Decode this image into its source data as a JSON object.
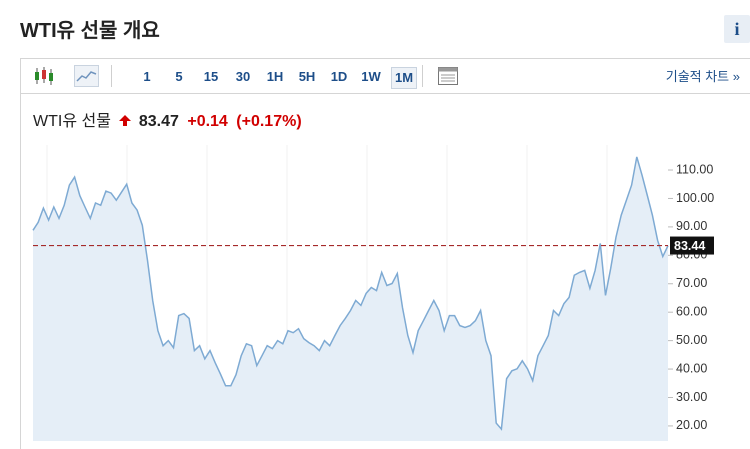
{
  "header": {
    "title": "WTI유 선물 개요",
    "info": "i"
  },
  "toolbar": {
    "intervals": [
      "1",
      "5",
      "15",
      "30",
      "1H",
      "5H",
      "1D",
      "1W",
      "1M"
    ],
    "selected_index": 8,
    "technical_chart": "기술적 차트 »"
  },
  "quote": {
    "name": "WTI유 선물",
    "price": "83.47",
    "change": "+0.14",
    "change_pct": "(+0.17%)"
  },
  "chart_data": {
    "type": "line",
    "color": "#7eaad3",
    "fill": "#e5eef7",
    "values": [
      88.8,
      91.6,
      96.6,
      92.4,
      97,
      93,
      97.6,
      104.7,
      107.5,
      101,
      97,
      93,
      98.4,
      97.6,
      102.6,
      101.9,
      99.4,
      102.2,
      105,
      98.4,
      95.9,
      90.6,
      78.2,
      64.1,
      53.5,
      48.2,
      50,
      47.5,
      58.8,
      59.5,
      57.8,
      46.5,
      48.2,
      43.6,
      46.5,
      42.2,
      38.3,
      34.1,
      34.1,
      38,
      44.7,
      48.9,
      48.2,
      41.2,
      44.7,
      48.2,
      47.2,
      50,
      48.9,
      53.5,
      52.8,
      54.2,
      50.7,
      49.3,
      48.2,
      46.5,
      50,
      48.2,
      51.8,
      55.3,
      57.8,
      60.6,
      64.1,
      62.4,
      66.6,
      68.7,
      67.6,
      74,
      69.4,
      70.1,
      73.6,
      61.6,
      51.8,
      45.8,
      53.5,
      57,
      60.6,
      64.1,
      60.6,
      53.5,
      58.8,
      58.8,
      55.3,
      54.6,
      55.3,
      57,
      60.6,
      50,
      44.7,
      21,
      18.9,
      36.6,
      39.4,
      40.1,
      42.9,
      40.1,
      35.9,
      44.7,
      48.2,
      51.8,
      60.6,
      58.8,
      63,
      65.2,
      73,
      74,
      74.7,
      68.4,
      74.7,
      84.2,
      65.9,
      75.4,
      86.4,
      94.1,
      99.4,
      104.7,
      114.6,
      108.2,
      101.2,
      94.1,
      85.3,
      79.6,
      83.4
    ],
    "ylim": [
      14.7,
      118.8
    ],
    "yticks": [
      {
        "value": 20,
        "label": "20.00"
      },
      {
        "value": 30,
        "label": "30.00"
      },
      {
        "value": 40,
        "label": "40.00"
      },
      {
        "value": 50,
        "label": "50.00"
      },
      {
        "value": 60,
        "label": "60.00"
      },
      {
        "value": 70,
        "label": "70.00"
      },
      {
        "value": 80,
        "label": "80.00"
      },
      {
        "value": 90,
        "label": "90.00"
      },
      {
        "value": 100,
        "label": "100.00"
      },
      {
        "value": 110,
        "label": "110.00"
      }
    ],
    "reference_line": {
      "value": 83.44,
      "label": "83.44",
      "color": "#a52a2a"
    }
  }
}
